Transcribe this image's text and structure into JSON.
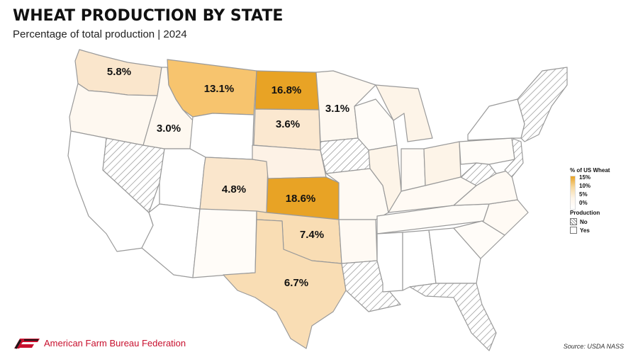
{
  "header": {
    "title": "WHEAT PRODUCTION BY STATE",
    "subtitle": "Percentage of total production | 2024"
  },
  "map": {
    "type": "choropleth",
    "region": "Contiguous United States",
    "colors": {
      "high": "#e8a325",
      "mid": "#f6d9a0",
      "low": "#fdf4e8",
      "none_hatch": "#8a8a8a",
      "border": "#9a9a9a"
    },
    "labeled_states": [
      {
        "state": "Washington",
        "value_label": "5.8%",
        "value": 5.8
      },
      {
        "state": "Montana",
        "value_label": "13.1%",
        "value": 13.1
      },
      {
        "state": "North Dakota",
        "value_label": "16.8%",
        "value": 16.8
      },
      {
        "state": "Minnesota",
        "value_label": "3.1%",
        "value": 3.1
      },
      {
        "state": "Idaho",
        "value_label": "3.0%",
        "value": 3.0
      },
      {
        "state": "South Dakota",
        "value_label": "3.6%",
        "value": 3.6
      },
      {
        "state": "Colorado",
        "value_label": "4.8%",
        "value": 4.8
      },
      {
        "state": "Kansas",
        "value_label": "18.6%",
        "value": 18.6
      },
      {
        "state": "Oklahoma",
        "value_label": "7.4%",
        "value": 7.4
      },
      {
        "state": "Texas",
        "value_label": "6.7%",
        "value": 6.7
      }
    ]
  },
  "legend": {
    "title": "% of US Wheat",
    "scale_labels": [
      "15%",
      "10%",
      "5%",
      "0%"
    ],
    "production_title": "Production",
    "production_no": "No",
    "production_yes": "Yes"
  },
  "footer": {
    "org": "American Farm Bureau Federation",
    "source": "Source: USDA NASS"
  }
}
